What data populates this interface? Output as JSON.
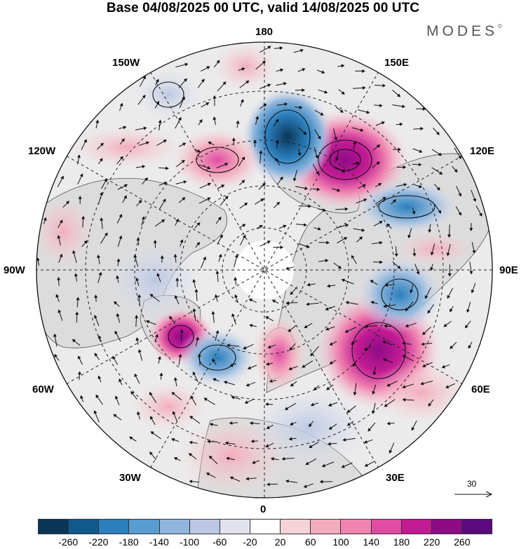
{
  "header": {
    "title": "Base 04/08/2025 00 UTC, valid 14/08/2025 00 UTC",
    "brand": "MODES",
    "brand_mark": "©"
  },
  "map": {
    "projection": "north-polar-stereographic",
    "longitude_labels": {
      "top": "180",
      "bottom": "0",
      "left": "90W",
      "right": "90E",
      "upper_left_1": "150W",
      "upper_left_2": "120W",
      "upper_right_1": "150E",
      "upper_right_2": "120E",
      "lower_left_1": "60W",
      "lower_left_2": "30W",
      "lower_right_1": "60E",
      "lower_right_2": "30E"
    },
    "wind_scale": {
      "value": "30"
    }
  },
  "colorbar": {
    "colors": [
      "#0b3556",
      "#10598c",
      "#2b7fbd",
      "#579dcf",
      "#8fb6dd",
      "#bcc8e3",
      "#e2e2ef",
      "#ffffff",
      "#f6d3d8",
      "#f3acbd",
      "#f084b0",
      "#e24da4",
      "#c21b93",
      "#8d0b86",
      "#5a0a7c"
    ],
    "tick_labels": [
      "-260",
      "-220",
      "-180",
      "-140",
      "-100",
      "-60",
      "-20",
      "20",
      "60",
      "100",
      "140",
      "180",
      "220",
      "260"
    ]
  },
  "colors": {
    "land_fill": "#dcdcdc",
    "ocean_fill": "#ebebeb",
    "graticule": "#222222",
    "coastline": "#444444"
  }
}
